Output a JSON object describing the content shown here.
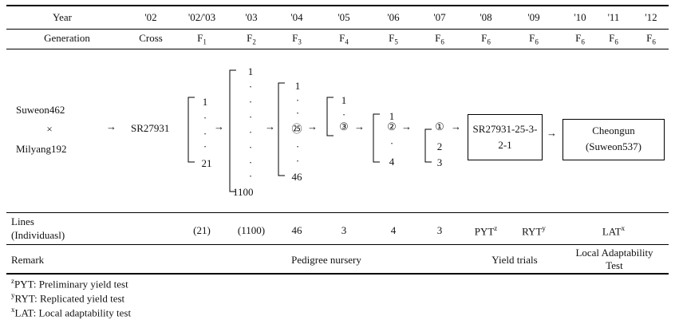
{
  "header": {
    "year_label": "Year",
    "generation_label": "Generation",
    "years": [
      "'02",
      "'02/'03",
      "'03",
      "'04",
      "'05",
      "'06",
      "'07",
      "'08",
      "'09",
      "'10",
      "'11",
      "'12"
    ],
    "generations": [
      {
        "base": "Cross",
        "sub": ""
      },
      {
        "base": "F",
        "sub": "1"
      },
      {
        "base": "F",
        "sub": "2"
      },
      {
        "base": "F",
        "sub": "3"
      },
      {
        "base": "F",
        "sub": "4"
      },
      {
        "base": "F",
        "sub": "5"
      },
      {
        "base": "F",
        "sub": "6"
      },
      {
        "base": "F",
        "sub": "6"
      },
      {
        "base": "F",
        "sub": "6"
      },
      {
        "base": "F",
        "sub": "6"
      },
      {
        "base": "F",
        "sub": "6"
      },
      {
        "base": "F",
        "sub": "6"
      }
    ]
  },
  "diagram": {
    "parent1": "Suweon462",
    "cross_symbol": "×",
    "parent2": "Milyang192",
    "cross_name": "SR27931",
    "f1_top": "1",
    "f1_bottom": "21",
    "f2_top": "1",
    "f2_bottom": "1100",
    "f3_top": "1",
    "f3_selected": "㉕",
    "f3_bottom": "46",
    "f4_top": "1",
    "f4_selected": "③",
    "f5_top": "1",
    "f5_selected": "②",
    "f5_bottom": "4",
    "f6_selected": "①",
    "f6_mid": "2",
    "f6_bottom": "3",
    "line_name_1": "SR27931-25-3-",
    "line_name_2": "2-1",
    "cultivar_1": "Cheongun",
    "cultivar_2": "(Suweon537)",
    "dot": "·",
    "arrow": "→"
  },
  "lines_row": {
    "label_1": "Lines",
    "label_2": "(Individuasl)",
    "values": [
      "(21)",
      "(1100)",
      "46",
      "3",
      "4",
      "3"
    ],
    "pyt": "PYT",
    "pyt_sup": "z",
    "ryt": "RYT",
    "ryt_sup": "y",
    "lat": "LAT",
    "lat_sup": "x"
  },
  "remark_row": {
    "label": "Remark",
    "pedigree": "Pedigree nursery",
    "yield": "Yield trials",
    "local_1": "Local Adaptability",
    "local_2": "Test"
  },
  "footnotes": [
    {
      "sup": "z",
      "text": "PYT: Preliminary yield test"
    },
    {
      "sup": "y",
      "text": "RYT: Replicated yield test"
    },
    {
      "sup": "x",
      "text": "LAT: Local adaptability test"
    }
  ]
}
